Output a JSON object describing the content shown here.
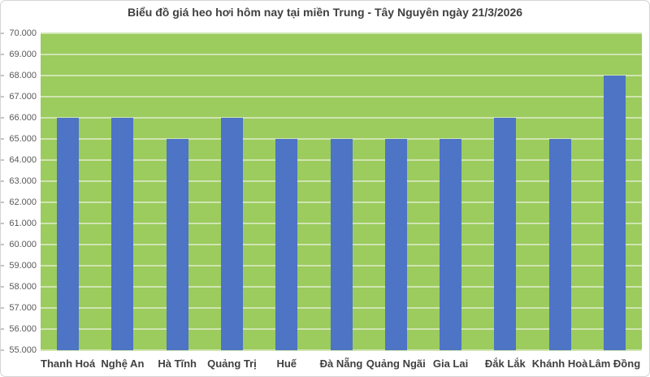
{
  "chart": {
    "title": "Biểu đồ giá heo hơi hôm nay tại miền Trung - Tây Nguyên ngày 21/3/2026"
  },
  "chart_data": {
    "type": "bar",
    "title": "Biểu đồ giá heo hơi hôm nay tại miền Trung - Tây Nguyên ngày 21/3/2026",
    "categories": [
      "Thanh Hoá",
      "Nghệ An",
      "Hà Tĩnh",
      "Quảng Trị",
      "Huế",
      "Đà Nẵng",
      "Quảng Ngãi",
      "Gia Lai",
      "Đắk Lắk",
      "Khánh Hoà",
      "Lâm Đồng"
    ],
    "values": [
      66000,
      66000,
      65000,
      66000,
      65000,
      65000,
      65000,
      65000,
      66000,
      65000,
      68000
    ],
    "xlabel": "",
    "ylabel": "",
    "ylim": [
      55000,
      70000
    ],
    "ytick_step": 1000,
    "ytick_labels_top_to_bottom": [
      "70.000",
      "69.000",
      "68.000",
      "67.000",
      "66.000",
      "65.000",
      "64.000",
      "63.000",
      "62.000",
      "61.000",
      "60.000",
      "59.000",
      "58.000",
      "57.000",
      "56.000",
      "55.000"
    ],
    "grid": true,
    "legend": false,
    "colors": {
      "bar": "#4d74c5",
      "plot_bg": "#9ccb5e",
      "gridline": "#cfe5b0",
      "title_text": "#404040",
      "y_axis_text": "#595959",
      "x_axis_text": "#404040",
      "border": "#d4d4d4",
      "background": "#ffffff"
    }
  }
}
